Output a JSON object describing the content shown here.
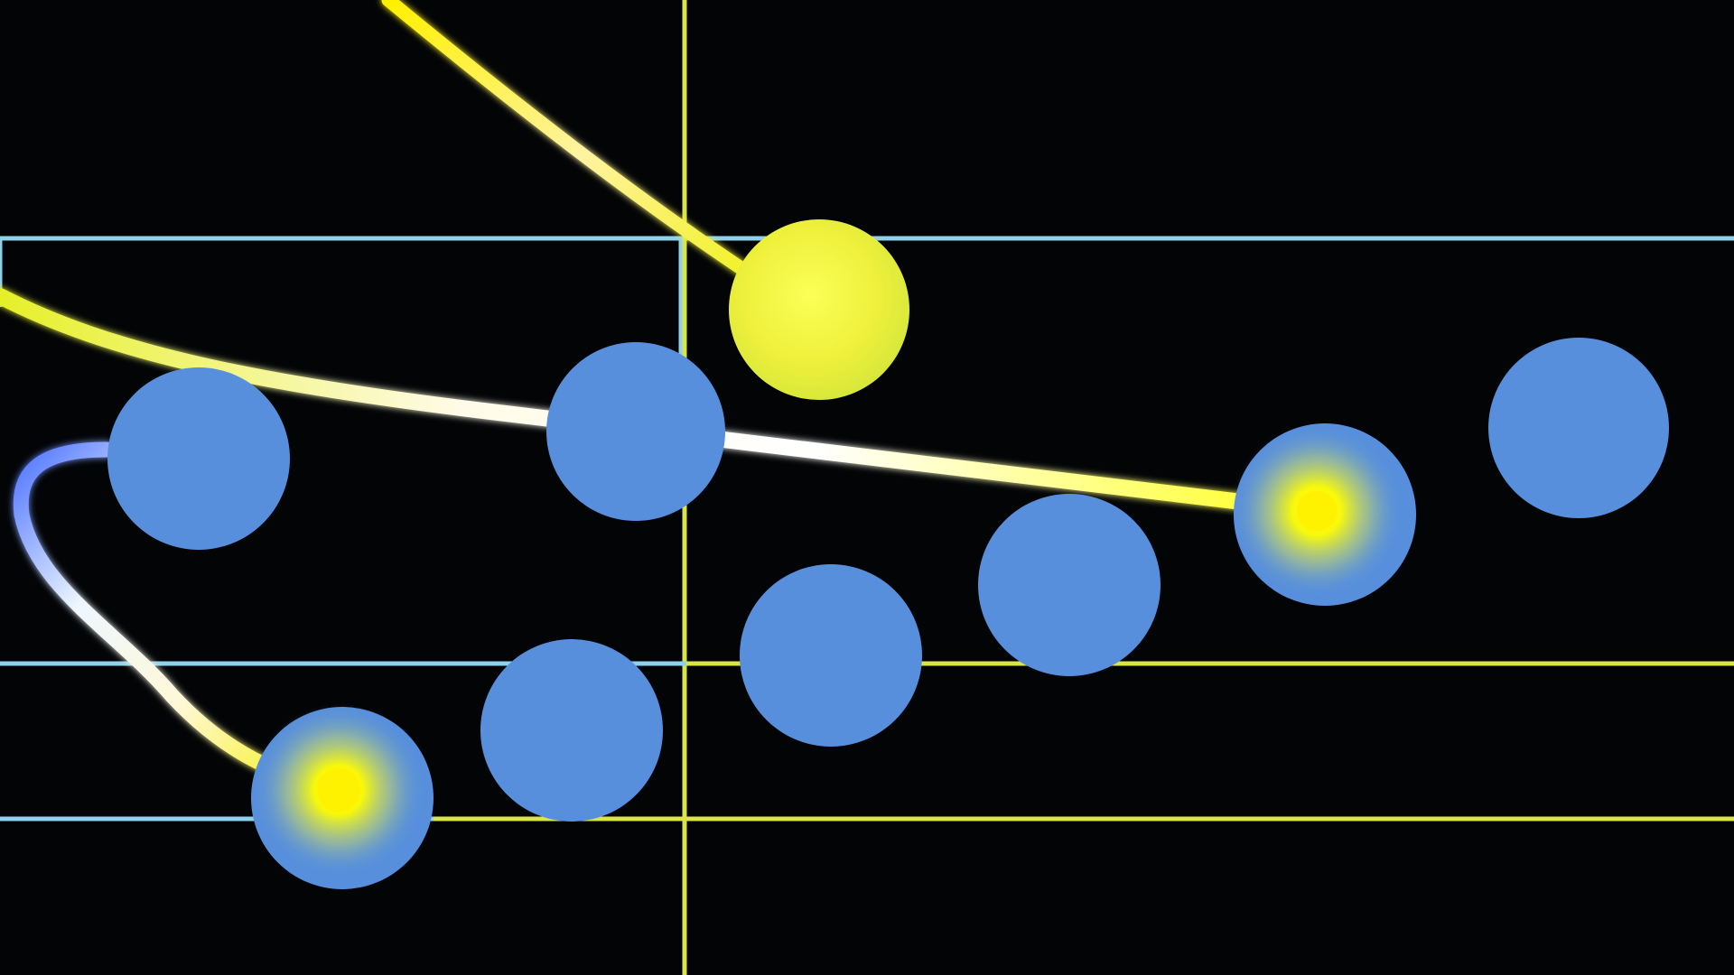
{
  "colors": {
    "background": "#020406",
    "lane_blue": "#8fd0ea",
    "lane_yellow": "#d8e44a",
    "target_blue": "#578fdc",
    "active_yellow": "#eef03b",
    "trail_white": "#fffbe6"
  },
  "scene": {
    "targets": [
      {
        "id": "target-1",
        "color": "blue",
        "state": "idle"
      },
      {
        "id": "target-2",
        "color": "blue",
        "state": "idle"
      },
      {
        "id": "target-3",
        "color": "yellow",
        "state": "active"
      },
      {
        "id": "target-4",
        "color": "blue",
        "state": "idle"
      },
      {
        "id": "target-5",
        "color": "blue",
        "state": "hit"
      },
      {
        "id": "target-6",
        "color": "blue",
        "state": "idle"
      },
      {
        "id": "target-7",
        "color": "blue",
        "state": "hit"
      },
      {
        "id": "target-8",
        "color": "blue",
        "state": "idle"
      },
      {
        "id": "target-9",
        "color": "blue",
        "state": "idle"
      },
      {
        "id": "target-10",
        "color": "blue",
        "state": "idle"
      }
    ]
  }
}
